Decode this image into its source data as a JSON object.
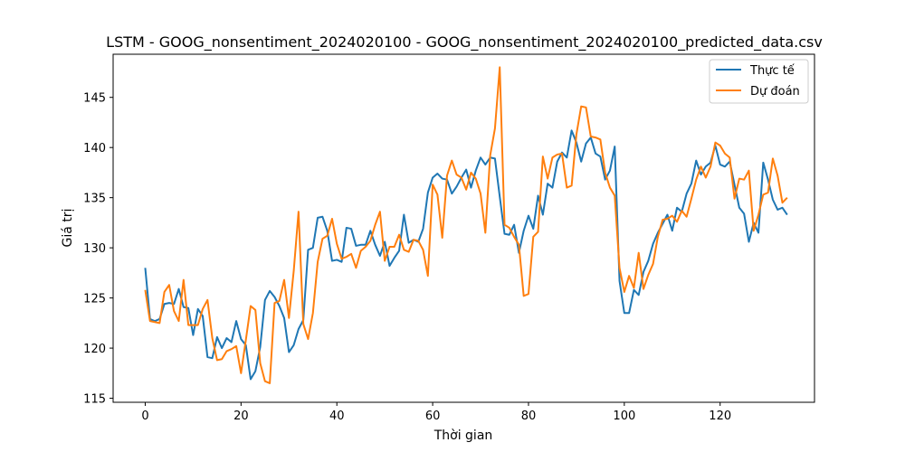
{
  "chart_data": {
    "type": "line",
    "title": "LSTM - GOOG_nonsentiment_2024020100 - GOOG_nonsentiment_2024020100_predicted_data.csv",
    "xlabel": "Thời gian",
    "ylabel": "Giá trị",
    "xlim": [
      -6.7,
      139.7
    ],
    "ylim": [
      114.6,
      149.3
    ],
    "xticks": [
      0,
      20,
      40,
      60,
      80,
      100,
      120
    ],
    "yticks": [
      115,
      120,
      125,
      130,
      135,
      140,
      145
    ],
    "grid": false,
    "legend_position": "top-right",
    "series": [
      {
        "name": "Thực tế",
        "color": "#1f77b4",
        "values": [
          128.0,
          122.9,
          122.7,
          122.9,
          124.4,
          124.5,
          124.4,
          125.9,
          124.1,
          124.0,
          121.3,
          123.9,
          123.2,
          119.1,
          119.0,
          121.1,
          120.0,
          121.0,
          120.6,
          122.7,
          120.9,
          120.3,
          116.9,
          117.7,
          120.1,
          124.8,
          125.7,
          125.1,
          124.2,
          123.0,
          119.6,
          120.3,
          121.9,
          122.8,
          129.8,
          130.0,
          133.0,
          133.1,
          131.7,
          128.7,
          128.8,
          128.6,
          132.0,
          131.9,
          130.2,
          130.3,
          130.3,
          131.7,
          130.3,
          129.2,
          130.6,
          128.2,
          129.0,
          129.7,
          133.3,
          130.5,
          130.8,
          130.6,
          131.9,
          135.5,
          137.0,
          137.4,
          136.9,
          136.8,
          135.4,
          136.1,
          137.0,
          137.8,
          136.0,
          137.7,
          139.0,
          138.3,
          139.0,
          138.9,
          135.1,
          131.4,
          131.3,
          132.3,
          129.5,
          131.7,
          133.2,
          131.9,
          135.2,
          133.3,
          136.4,
          136.0,
          138.6,
          139.5,
          139.0,
          141.7,
          140.5,
          138.6,
          140.4,
          141.0,
          139.4,
          139.1,
          136.8,
          137.7,
          140.1,
          126.7,
          123.5,
          123.5,
          125.8,
          125.3,
          127.6,
          128.7,
          130.4,
          131.5,
          132.4,
          133.3,
          131.7,
          134.0,
          133.6,
          135.4,
          136.4,
          138.7,
          137.3,
          138.1,
          138.5,
          140.2,
          138.3,
          138.1,
          138.6,
          136.3,
          134.0,
          133.4,
          130.6,
          132.5,
          131.5,
          138.5,
          136.8,
          134.8,
          133.8,
          134.0,
          133.3
        ]
      },
      {
        "name": "Dự đoán",
        "color": "#ff7f0e",
        "values": [
          125.8,
          122.7,
          122.6,
          122.5,
          125.6,
          126.3,
          123.7,
          122.7,
          126.8,
          122.3,
          122.3,
          122.3,
          123.9,
          124.8,
          121.0,
          118.8,
          118.9,
          119.7,
          119.9,
          120.2,
          117.5,
          120.8,
          124.2,
          123.8,
          118.5,
          116.7,
          116.5,
          124.5,
          124.7,
          126.8,
          123.0,
          127.7,
          133.6,
          122.4,
          120.9,
          123.5,
          128.6,
          130.9,
          131.2,
          132.9,
          130.4,
          128.9,
          129.1,
          129.4,
          128.0,
          129.7,
          130.1,
          130.7,
          132.3,
          133.6,
          128.7,
          130.1,
          130.1,
          131.3,
          129.8,
          129.6,
          130.8,
          130.7,
          129.8,
          127.2,
          136.3,
          135.3,
          131.0,
          137.2,
          138.7,
          137.3,
          137.0,
          135.8,
          137.5,
          136.9,
          135.4,
          131.5,
          139.2,
          141.9,
          148.0,
          132.3,
          132.0,
          131.1,
          130.3,
          125.2,
          125.4,
          131.1,
          131.6,
          139.1,
          136.9,
          139.0,
          139.3,
          139.4,
          136.0,
          136.2,
          141.3,
          144.1,
          144.0,
          141.1,
          141.0,
          140.8,
          137.5,
          136.0,
          135.2,
          128.0,
          125.6,
          127.2,
          126.0,
          129.5,
          125.9,
          127.3,
          128.4,
          131.1,
          132.8,
          132.9,
          133.2,
          132.6,
          133.7,
          133.1,
          134.9,
          136.8,
          138.1,
          137.0,
          138.1,
          140.5,
          140.2,
          139.4,
          139.0,
          134.9,
          136.9,
          136.8,
          137.7,
          131.7,
          133.3,
          135.3,
          135.5,
          138.9,
          137.2,
          134.5,
          135.0
        ]
      }
    ]
  }
}
